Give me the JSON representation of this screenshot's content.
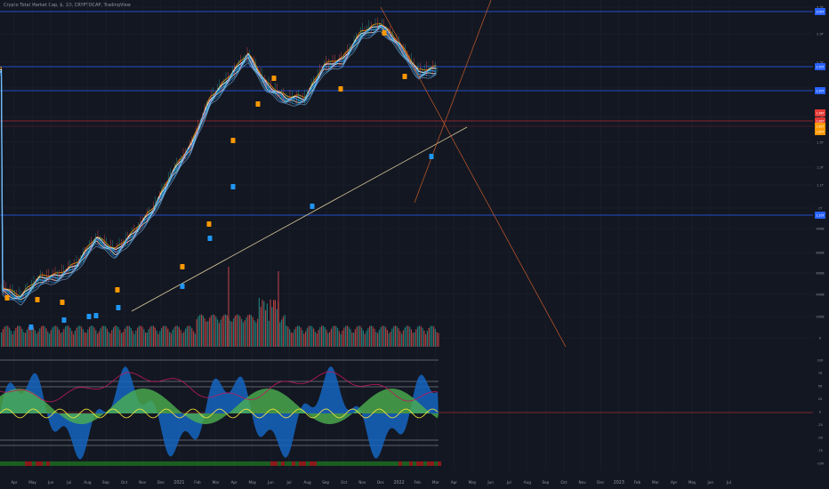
{
  "header": {
    "symbol_line": "Crypto Total Market Cap, $, 1D, CRYPTOCAP, TradingView"
  },
  "colors": {
    "background": "#131722",
    "grid": "#1e222d",
    "level_line": "#2962ff",
    "level_line_red": "#b22833",
    "candle_up": "#26a69a",
    "candle_down": "#ef5350",
    "ribbon_light": "#e8f4ff",
    "ribbon_blue": "#2196f3",
    "ribbon_orange": "#ff9800",
    "trendline_support": "#d9c89a",
    "trendline_orange": "#c85a28",
    "volume_up": "#26a69a",
    "volume_down": "#ef5350",
    "osc_blue": "#1565c0",
    "osc_green": "#4caf50",
    "osc_yellow": "#ffeb3b",
    "osc_red_line": "#c2185b",
    "status_green": "#1b5e20",
    "status_red": "#8b1a1a",
    "price_label_orange": "#ff9800",
    "price_label_red": "#e53935"
  },
  "chart_data": {
    "type": "line",
    "title": "Crypto Total Market Cap, $, 1D, CRYPTOCAP, TradingView",
    "x_tick_labels": [
      "Apr",
      "May",
      "Jun",
      "Jul",
      "Aug",
      "Sep",
      "Oct",
      "Nov",
      "Dec",
      "2021",
      "Feb",
      "Mar",
      "Apr",
      "May",
      "Jun",
      "Jul",
      "Aug",
      "Sep",
      "Oct",
      "Nov",
      "Dec",
      "2022",
      "Feb",
      "Mar",
      "Apr",
      "May",
      "Jun",
      "Jul",
      "Aug",
      "Sep",
      "Oct",
      "Nov",
      "Dec",
      "2023",
      "Feb",
      "Mar",
      "Apr",
      "May",
      "Jun",
      "Jul"
    ],
    "y_tick_labels": [
      "3.5T",
      "2.9T",
      "2.5T",
      "2.1T",
      "1.7T",
      "1.5T",
      "1.3T",
      "1.1T",
      "1T",
      "900B",
      "800B",
      "600B",
      "400B",
      "200B",
      "0"
    ],
    "osc_tick_labels": [
      "100",
      "75",
      "50",
      "25",
      "0",
      "-25",
      "-50",
      "-75",
      "-100"
    ],
    "price_labels": {
      "top": "3.00T",
      "level_1": "2.50T",
      "level_2": "2.20T",
      "level_3": "1.96T",
      "current": "1.86T",
      "current_2": "1.82T",
      "current_3": "1.80T",
      "support": "1.10T"
    },
    "series": [
      {
        "name": "",
        "x": [
          "2020-03",
          "2020-04",
          "2020-05",
          "2020-06",
          "2020-07",
          "2020-08",
          "2020-09",
          "2020-10",
          "2020-11",
          "2020-12",
          "2021-01",
          "2021-02",
          "2021-03",
          "2021-04",
          "2021-05",
          "2021-06",
          "2021-07",
          "2021-08",
          "2021-09",
          "2021-10",
          "2021-11",
          "2021-12",
          "2022-01",
          "2022-02"
        ],
        "values": [
          0.24,
          0.22,
          0.26,
          0.27,
          0.3,
          0.38,
          0.34,
          0.4,
          0.5,
          0.7,
          0.9,
          1.4,
          1.7,
          2.1,
          1.6,
          1.4,
          1.4,
          1.9,
          2.0,
          2.6,
          2.8,
          2.3,
          1.8,
          1.85
        ]
      }
    ],
    "levels": [
      3.0,
      2.5,
      2.2,
      1.96,
      1.1
    ],
    "ylim": [
      0,
      3.2
    ],
    "grid": true
  }
}
